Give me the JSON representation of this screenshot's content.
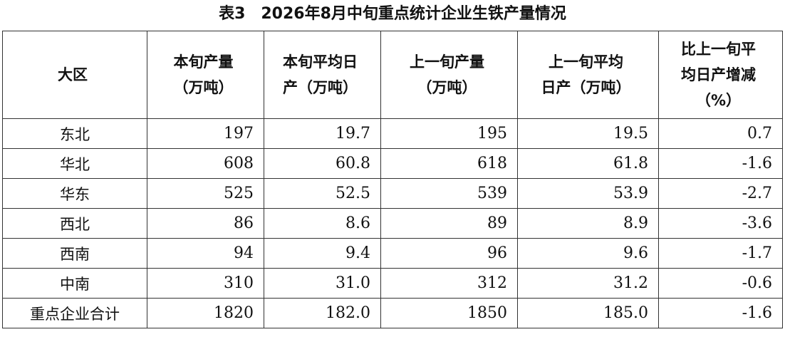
{
  "title": "表3　2026年8月中旬重点统计企业生铁产量情况",
  "table": {
    "header": [
      [
        "大区"
      ],
      [
        "本旬产量",
        "（万吨）"
      ],
      [
        "本旬平均日",
        "产（万吨）"
      ],
      [
        "上一旬产量",
        "（万吨）"
      ],
      [
        "上一旬平均",
        "日产（万吨）"
      ],
      [
        "比上一旬平",
        "均日产增减",
        "（%）"
      ]
    ],
    "rows": [
      [
        "东北",
        "197",
        "19.7",
        "195",
        "19.5",
        "0.7"
      ],
      [
        "华北",
        "608",
        "60.8",
        "618",
        "61.8",
        "-1.6"
      ],
      [
        "华东",
        "525",
        "52.5",
        "539",
        "53.9",
        "-2.7"
      ],
      [
        "西北",
        "86",
        "8.6",
        "89",
        "8.9",
        "-3.6"
      ],
      [
        "西南",
        "94",
        "9.4",
        "96",
        "9.6",
        "-1.7"
      ],
      [
        "中南",
        "310",
        "31.0",
        "312",
        "31.2",
        "-0.6"
      ],
      [
        "重点企业合计",
        "1820",
        "182.0",
        "1850",
        "185.0",
        "-1.6"
      ]
    ]
  }
}
